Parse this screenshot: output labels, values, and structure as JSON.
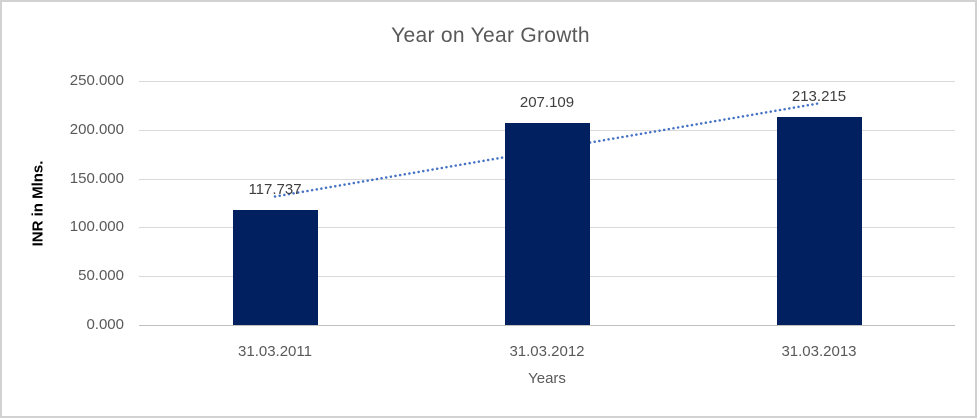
{
  "frame": {
    "background": "#ffffff",
    "border_color": "#d2d2d2"
  },
  "chart_data": {
    "type": "bar",
    "title": "Year on Year Growth",
    "categories": [
      "31.03.2011",
      "31.03.2012",
      "31.03.2013"
    ],
    "values": [
      117.737,
      207.109,
      213.215
    ],
    "data_labels": [
      "117.737",
      "207.109",
      "213.215"
    ],
    "xlabel": "Years",
    "ylabel": "INR in Mlns.",
    "ylim": [
      0,
      250
    ],
    "ytick_step": 50,
    "ytick_labels": [
      "0.000",
      "50.000",
      "100.000",
      "150.000",
      "200.000",
      "250.000"
    ],
    "grid": true,
    "legend": false,
    "trendline": {
      "type": "linear",
      "style": "dotted"
    },
    "colors": {
      "bar": "#002060",
      "trendline": "#4472c4",
      "gridline": "#d9d9d9",
      "baseline": "#c0c0c0",
      "tick_label": "#595959",
      "data_label": "#3f3f3f",
      "title": "#595959",
      "y_axis_title": "#000000"
    }
  }
}
